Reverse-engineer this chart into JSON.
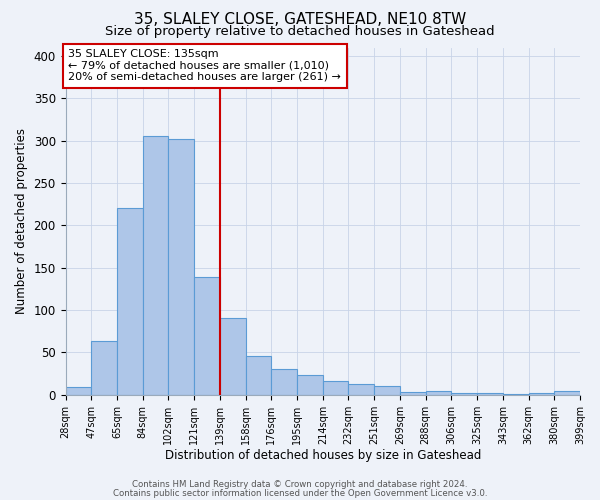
{
  "title": "35, SLALEY CLOSE, GATESHEAD, NE10 8TW",
  "subtitle": "Size of property relative to detached houses in Gateshead",
  "xlabel": "Distribution of detached houses by size in Gateshead",
  "ylabel": "Number of detached properties",
  "bar_labels": [
    "28sqm",
    "47sqm",
    "65sqm",
    "84sqm",
    "102sqm",
    "121sqm",
    "139sqm",
    "158sqm",
    "176sqm",
    "195sqm",
    "214sqm",
    "232sqm",
    "251sqm",
    "269sqm",
    "288sqm",
    "306sqm",
    "325sqm",
    "343sqm",
    "362sqm",
    "380sqm",
    "399sqm"
  ],
  "bar_values": [
    9,
    63,
    221,
    305,
    302,
    139,
    91,
    46,
    31,
    23,
    16,
    13,
    11,
    3,
    5,
    2,
    2,
    1,
    2,
    4
  ],
  "bar_color": "#aec6e8",
  "bar_edge_color": "#5b9bd5",
  "ylim": [
    0,
    410
  ],
  "vline_x": 6.0,
  "vline_color": "#cc0000",
  "annotation_line1": "35 SLALEY CLOSE: 135sqm",
  "annotation_line2": "← 79% of detached houses are smaller (1,010)",
  "annotation_line3": "20% of semi-detached houses are larger (261) →",
  "annotation_box_color": "#ffffff",
  "annotation_box_edge": "#cc0000",
  "footer1": "Contains HM Land Registry data © Crown copyright and database right 2024.",
  "footer2": "Contains public sector information licensed under the Open Government Licence v3.0.",
  "background_color": "#eef2f9",
  "plot_background": "#eef2f9",
  "grid_color": "#c8d4e8",
  "title_fontsize": 11,
  "subtitle_fontsize": 9.5
}
